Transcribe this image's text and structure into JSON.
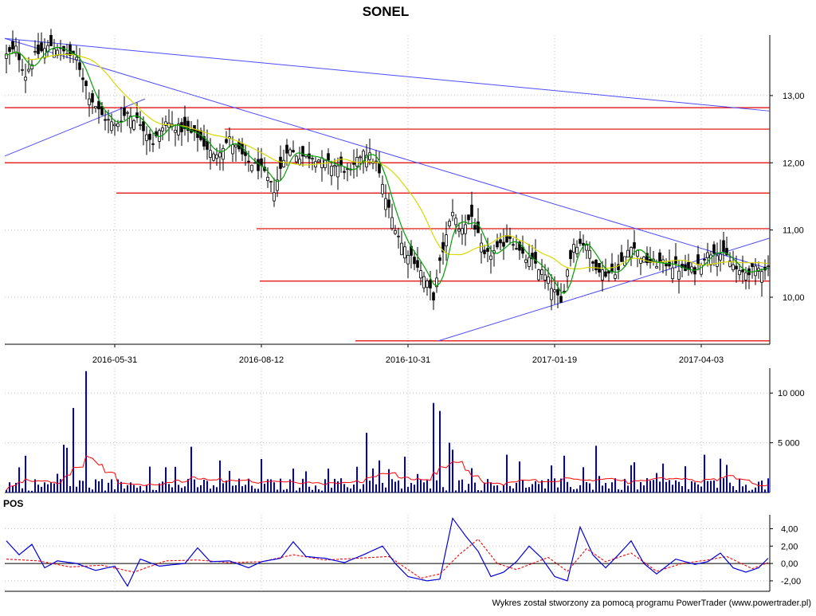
{
  "title": "SONEL",
  "footer": "Wykres został stworzony za pomocą programu PowerTrader (www.powertrader.pl)",
  "colors": {
    "candle": "#000000",
    "ma_fast": "#00a000",
    "ma_slow": "#d8d800",
    "trend_lines": "#4c4cff",
    "support_lines": "#e00000",
    "volume_bars": "#0000c8",
    "volume_avg": "#ff0000",
    "pos_line": "#0000dd",
    "pos_signal": "#ff0000",
    "grid": "#c0c0c0"
  },
  "chart_data": [
    {
      "type": "candlestick",
      "panel": "price",
      "title": "SONEL",
      "ylim": [
        9.3,
        13.9
      ],
      "y_ticks": [
        "10,00",
        "11,00",
        "12,00",
        "13,00"
      ],
      "y_tick_values": [
        10,
        11,
        12,
        13
      ],
      "x_ticks": [
        "2016-05-31",
        "2016-08-12",
        "2016-10-31",
        "2017-01-19",
        "2017-04-03"
      ],
      "x_tick_index": [
        34,
        80,
        126,
        172,
        218
      ],
      "candles_count": 240,
      "close_anchors": [
        [
          0,
          13.6
        ],
        [
          3,
          13.7
        ],
        [
          6,
          13.3
        ],
        [
          9,
          13.6
        ],
        [
          14,
          13.75
        ],
        [
          18,
          13.65
        ],
        [
          22,
          13.55
        ],
        [
          26,
          13.0
        ],
        [
          30,
          12.7
        ],
        [
          34,
          12.55
        ],
        [
          38,
          12.75
        ],
        [
          42,
          12.6
        ],
        [
          46,
          12.3
        ],
        [
          50,
          12.6
        ],
        [
          55,
          12.5
        ],
        [
          60,
          12.4
        ],
        [
          65,
          12.1
        ],
        [
          70,
          12.35
        ],
        [
          75,
          12.05
        ],
        [
          80,
          11.9
        ],
        [
          84,
          11.6
        ],
        [
          88,
          12.2
        ],
        [
          92,
          12.1
        ],
        [
          96,
          12.1
        ],
        [
          100,
          12.0
        ],
        [
          104,
          11.95
        ],
        [
          108,
          11.85
        ],
        [
          112,
          12.2
        ],
        [
          116,
          12.0
        ],
        [
          120,
          11.3
        ],
        [
          124,
          10.8
        ],
        [
          128,
          10.55
        ],
        [
          131,
          10.3
        ],
        [
          134,
          10.0
        ],
        [
          136,
          10.5
        ],
        [
          138,
          10.9
        ],
        [
          140,
          11.3
        ],
        [
          142,
          11.0
        ],
        [
          146,
          11.2
        ],
        [
          148,
          10.9
        ],
        [
          150,
          10.6
        ],
        [
          154,
          10.7
        ],
        [
          158,
          10.9
        ],
        [
          162,
          10.6
        ],
        [
          166,
          10.5
        ],
        [
          170,
          10.25
        ],
        [
          174,
          9.9
        ],
        [
          176,
          10.4
        ],
        [
          178,
          10.8
        ],
        [
          182,
          10.8
        ],
        [
          184,
          10.5
        ],
        [
          188,
          10.35
        ],
        [
          192,
          10.4
        ],
        [
          196,
          10.8
        ],
        [
          200,
          10.55
        ],
        [
          204,
          10.5
        ],
        [
          208,
          10.5
        ],
        [
          212,
          10.4
        ],
        [
          216,
          10.4
        ],
        [
          219,
          10.6
        ],
        [
          222,
          10.7
        ],
        [
          226,
          10.6
        ],
        [
          230,
          10.35
        ],
        [
          234,
          10.4
        ],
        [
          239,
          10.45
        ]
      ],
      "horizontal_levels": [
        {
          "value": 12.82,
          "from_index": 0
        },
        {
          "value": 12.5,
          "from_index": 69
        },
        {
          "value": 12.0,
          "from_index": 0
        },
        {
          "value": 11.55,
          "from_index": 35
        },
        {
          "value": 11.02,
          "from_index": 79
        },
        {
          "value": 10.24,
          "from_index": 80
        },
        {
          "value": 9.35,
          "from_index": 110
        }
      ],
      "trend_lines": [
        {
          "from": [
            0,
            13.85
          ],
          "to": [
            240,
            12.77
          ]
        },
        {
          "from": [
            0,
            13.85
          ],
          "to": [
            240,
            10.42
          ]
        },
        {
          "from": [
            0,
            12.1
          ],
          "to": [
            44,
            12.95
          ]
        },
        {
          "from": [
            136,
            9.35
          ],
          "to": [
            240,
            10.88
          ]
        }
      ],
      "ma_fast_period": 5,
      "ma_slow_period": 20
    },
    {
      "type": "bar",
      "panel": "volume",
      "ylim": [
        0,
        12500
      ],
      "y_ticks": [
        "5 000",
        "10 000"
      ],
      "y_tick_values": [
        5000,
        10000
      ],
      "bar_count": 240,
      "spikes": [
        {
          "index": 6,
          "value": 3700
        },
        {
          "index": 18,
          "value": 4800
        },
        {
          "index": 21,
          "value": 8500
        },
        {
          "index": 25,
          "value": 12200
        },
        {
          "index": 19,
          "value": 4500
        },
        {
          "index": 45,
          "value": 2600
        },
        {
          "index": 58,
          "value": 4600
        },
        {
          "index": 90,
          "value": 2400
        },
        {
          "index": 113,
          "value": 6000
        },
        {
          "index": 125,
          "value": 3600
        },
        {
          "index": 134,
          "value": 9000
        },
        {
          "index": 136,
          "value": 8200
        },
        {
          "index": 139,
          "value": 5000
        },
        {
          "index": 140,
          "value": 4300
        },
        {
          "index": 157,
          "value": 3800
        },
        {
          "index": 175,
          "value": 3700
        },
        {
          "index": 185,
          "value": 4700
        },
        {
          "index": 219,
          "value": 3800
        },
        {
          "index": 224,
          "value": 3400
        }
      ],
      "base_value": 800,
      "average_line": "volume moving average"
    },
    {
      "type": "line",
      "panel": "oscillator",
      "title": "POS",
      "ylim": [
        -3.2,
        5.6
      ],
      "y_ticks": [
        "4,00",
        "2,00",
        "0,00",
        "-2,00"
      ],
      "y_tick_values": [
        4,
        2,
        0,
        -2
      ],
      "series": [
        {
          "name": "",
          "role": "pos",
          "anchors": [
            [
              0,
              2.6
            ],
            [
              4,
              1.0
            ],
            [
              8,
              2.2
            ],
            [
              12,
              -0.5
            ],
            [
              16,
              0.3
            ],
            [
              22,
              0.0
            ],
            [
              28,
              -0.8
            ],
            [
              34,
              -0.3
            ],
            [
              38,
              -2.6
            ],
            [
              42,
              0.5
            ],
            [
              48,
              -0.3
            ],
            [
              56,
              0.0
            ],
            [
              60,
              1.8
            ],
            [
              64,
              0.2
            ],
            [
              70,
              0.3
            ],
            [
              76,
              -0.5
            ],
            [
              80,
              0.2
            ],
            [
              86,
              0.6
            ],
            [
              90,
              2.5
            ],
            [
              94,
              0.8
            ],
            [
              100,
              0.6
            ],
            [
              106,
              0.1
            ],
            [
              112,
              1.0
            ],
            [
              118,
              2.0
            ],
            [
              122,
              0.0
            ],
            [
              126,
              -1.5
            ],
            [
              132,
              -2.0
            ],
            [
              136,
              -1.8
            ],
            [
              140,
              5.2
            ],
            [
              144,
              3.2
            ],
            [
              148,
              1.4
            ],
            [
              152,
              -1.5
            ],
            [
              156,
              -1.0
            ],
            [
              160,
              0.2
            ],
            [
              164,
              2.0
            ],
            [
              168,
              0.6
            ],
            [
              172,
              -1.5
            ],
            [
              176,
              -2.0
            ],
            [
              180,
              4.2
            ],
            [
              184,
              1.0
            ],
            [
              188,
              -0.5
            ],
            [
              192,
              1.0
            ],
            [
              196,
              2.6
            ],
            [
              200,
              0.0
            ],
            [
              204,
              -1.2
            ],
            [
              210,
              0.5
            ],
            [
              216,
              -0.1
            ],
            [
              220,
              0.2
            ],
            [
              224,
              1.2
            ],
            [
              228,
              -0.5
            ],
            [
              232,
              -1.0
            ],
            [
              236,
              -0.5
            ],
            [
              239,
              0.6
            ]
          ]
        },
        {
          "name": "",
          "role": "signal",
          "anchors": [
            [
              0,
              0.5
            ],
            [
              10,
              0.3
            ],
            [
              20,
              -0.4
            ],
            [
              30,
              -0.2
            ],
            [
              40,
              -1.0
            ],
            [
              50,
              0.3
            ],
            [
              60,
              0.4
            ],
            [
              70,
              0.1
            ],
            [
              80,
              0.2
            ],
            [
              90,
              1.0
            ],
            [
              100,
              0.4
            ],
            [
              110,
              0.6
            ],
            [
              120,
              0.8
            ],
            [
              130,
              -1.7
            ],
            [
              136,
              -1.2
            ],
            [
              142,
              1.0
            ],
            [
              148,
              2.8
            ],
            [
              154,
              0.0
            ],
            [
              160,
              -0.7
            ],
            [
              170,
              0.7
            ],
            [
              176,
              -0.9
            ],
            [
              182,
              1.7
            ],
            [
              188,
              0.2
            ],
            [
              196,
              1.2
            ],
            [
              204,
              -0.9
            ],
            [
              212,
              0.0
            ],
            [
              220,
              0.4
            ],
            [
              226,
              0.8
            ],
            [
              234,
              -0.6
            ],
            [
              239,
              0.1
            ]
          ]
        }
      ]
    }
  ]
}
